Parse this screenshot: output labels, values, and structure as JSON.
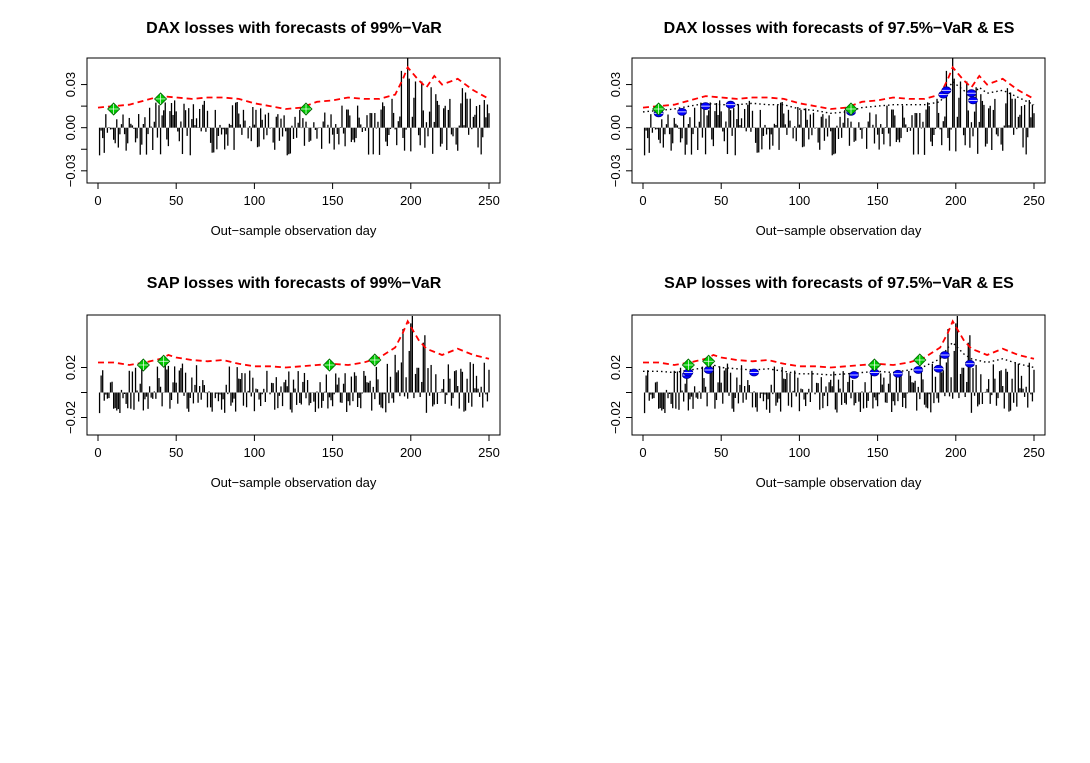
{
  "chart_data": [
    {
      "type": "bar",
      "title": "DAX losses with forecasts of 99%−VaR",
      "xlabel": "Out−sample observation day",
      "ylabel": "",
      "xlim": [
        0,
        250
      ],
      "ylim": [
        -0.035,
        0.045
      ],
      "xticks": [
        0,
        50,
        100,
        150,
        200,
        250
      ],
      "xtick_labels": [
        "0",
        "50",
        "100",
        "150",
        "200",
        "250"
      ],
      "yticks": [
        -0.03,
        0.0,
        0.03
      ],
      "ytick_labels": [
        "−0.03",
        "0.00",
        "0.03"
      ],
      "series": [
        {
          "kind": "var_line",
          "color": "#ff0000",
          "x": [
            0,
            10,
            20,
            30,
            40,
            50,
            60,
            70,
            80,
            90,
            100,
            110,
            120,
            130,
            140,
            150,
            160,
            170,
            180,
            190,
            195,
            198,
            205,
            210,
            215,
            220,
            230,
            240,
            250
          ],
          "y": [
            0.014,
            0.015,
            0.016,
            0.019,
            0.022,
            0.021,
            0.02,
            0.021,
            0.021,
            0.02,
            0.017,
            0.015,
            0.013,
            0.014,
            0.018,
            0.019,
            0.021,
            0.02,
            0.02,
            0.023,
            0.034,
            0.042,
            0.033,
            0.028,
            0.036,
            0.03,
            0.034,
            0.026,
            0.02
          ]
        },
        {
          "kind": "exceedance",
          "color": "#00c800",
          "marker": "diamond",
          "x": [
            10,
            40,
            133
          ],
          "y": [
            0.013,
            0.02,
            0.013
          ]
        }
      ]
    },
    {
      "type": "bar",
      "title": "DAX losses with forecasts of 97.5%−VaR & ES",
      "xlabel": "Out−sample observation day",
      "ylabel": "",
      "xlim": [
        0,
        250
      ],
      "ylim": [
        -0.035,
        0.045
      ],
      "xticks": [
        0,
        50,
        100,
        150,
        200,
        250
      ],
      "xtick_labels": [
        "0",
        "50",
        "100",
        "150",
        "200",
        "250"
      ],
      "yticks": [
        -0.03,
        0.0,
        0.03
      ],
      "ytick_labels": [
        "−0.03",
        "0.00",
        "0.03"
      ],
      "series": [
        {
          "kind": "es_line",
          "color": "#ff0000",
          "x": [
            0,
            10,
            20,
            30,
            40,
            50,
            60,
            70,
            80,
            90,
            100,
            110,
            120,
            130,
            140,
            150,
            160,
            170,
            180,
            190,
            195,
            198,
            205,
            210,
            215,
            220,
            230,
            240,
            250
          ],
          "y": [
            0.014,
            0.015,
            0.016,
            0.019,
            0.022,
            0.021,
            0.02,
            0.021,
            0.021,
            0.02,
            0.017,
            0.015,
            0.013,
            0.014,
            0.018,
            0.019,
            0.021,
            0.02,
            0.02,
            0.023,
            0.034,
            0.042,
            0.033,
            0.028,
            0.036,
            0.03,
            0.034,
            0.026,
            0.02
          ]
        },
        {
          "kind": "var_line",
          "color": "#000000",
          "x": [
            0,
            10,
            20,
            30,
            40,
            50,
            60,
            70,
            80,
            90,
            100,
            110,
            120,
            130,
            140,
            150,
            160,
            170,
            180,
            190,
            195,
            198,
            205,
            210,
            215,
            220,
            230,
            240,
            250
          ],
          "y": [
            0.011,
            0.012,
            0.013,
            0.015,
            0.017,
            0.016,
            0.016,
            0.017,
            0.016,
            0.016,
            0.013,
            0.012,
            0.01,
            0.011,
            0.014,
            0.015,
            0.016,
            0.016,
            0.016,
            0.018,
            0.027,
            0.032,
            0.026,
            0.022,
            0.028,
            0.024,
            0.026,
            0.021,
            0.016
          ]
        },
        {
          "kind": "var_exceedance",
          "color": "#0000ff",
          "marker": "circle",
          "x": [
            10,
            25,
            40,
            56,
            133,
            192,
            194,
            210,
            211
          ],
          "y": [
            0.01,
            0.011,
            0.015,
            0.016,
            0.011,
            0.023,
            0.026,
            0.024,
            0.019
          ]
        },
        {
          "kind": "es_exceedance",
          "color": "#00c800",
          "marker": "diamond",
          "x": [
            10,
            133
          ],
          "y": [
            0.013,
            0.013
          ]
        }
      ]
    },
    {
      "type": "bar",
      "title": "SAP losses with forecasts of 99%−VaR",
      "xlabel": "Out−sample observation day",
      "ylabel": "",
      "xlim": [
        0,
        250
      ],
      "ylim": [
        -0.03,
        0.058
      ],
      "xticks": [
        0,
        50,
        100,
        150,
        200,
        250
      ],
      "xtick_labels": [
        "0",
        "50",
        "100",
        "150",
        "200",
        "250"
      ],
      "yticks": [
        -0.02,
        0.02
      ],
      "ytick_labels": [
        "−0.02",
        "0.02"
      ],
      "series": [
        {
          "kind": "var_line",
          "color": "#ff0000",
          "x": [
            0,
            10,
            20,
            30,
            40,
            45,
            50,
            60,
            70,
            80,
            90,
            100,
            110,
            120,
            130,
            140,
            150,
            160,
            170,
            180,
            190,
            195,
            198,
            205,
            210,
            220,
            230,
            240,
            250
          ],
          "y": [
            0.024,
            0.024,
            0.022,
            0.024,
            0.027,
            0.03,
            0.028,
            0.026,
            0.025,
            0.026,
            0.023,
            0.021,
            0.021,
            0.02,
            0.021,
            0.022,
            0.023,
            0.022,
            0.024,
            0.028,
            0.036,
            0.048,
            0.057,
            0.042,
            0.035,
            0.03,
            0.035,
            0.03,
            0.027
          ]
        },
        {
          "kind": "exceedance",
          "color": "#00c800",
          "marker": "diamond",
          "x": [
            29,
            42,
            148,
            177
          ],
          "y": [
            0.022,
            0.025,
            0.022,
            0.026
          ]
        }
      ]
    },
    {
      "type": "bar",
      "title": "SAP losses with forecasts of 97.5%−VaR & ES",
      "xlabel": "Out−sample observation day",
      "ylabel": "",
      "xlim": [
        0,
        250
      ],
      "ylim": [
        -0.03,
        0.058
      ],
      "xticks": [
        0,
        50,
        100,
        150,
        200,
        250
      ],
      "xtick_labels": [
        "0",
        "50",
        "100",
        "150",
        "200",
        "250"
      ],
      "yticks": [
        -0.02,
        0.02
      ],
      "ytick_labels": [
        "−0.02",
        "0.02"
      ],
      "series": [
        {
          "kind": "es_line",
          "color": "#ff0000",
          "x": [
            0,
            10,
            20,
            30,
            40,
            45,
            50,
            60,
            70,
            80,
            90,
            100,
            110,
            120,
            130,
            140,
            150,
            160,
            170,
            180,
            190,
            195,
            198,
            205,
            210,
            220,
            230,
            240,
            250
          ],
          "y": [
            0.024,
            0.024,
            0.022,
            0.024,
            0.027,
            0.03,
            0.028,
            0.026,
            0.025,
            0.026,
            0.023,
            0.021,
            0.021,
            0.02,
            0.021,
            0.022,
            0.023,
            0.022,
            0.024,
            0.028,
            0.036,
            0.048,
            0.057,
            0.042,
            0.035,
            0.03,
            0.035,
            0.03,
            0.027
          ]
        },
        {
          "kind": "var_line",
          "color": "#000000",
          "x": [
            0,
            10,
            20,
            30,
            40,
            45,
            50,
            60,
            70,
            80,
            90,
            100,
            110,
            120,
            130,
            140,
            150,
            160,
            170,
            180,
            190,
            195,
            198,
            205,
            210,
            220,
            230,
            240,
            250
          ],
          "y": [
            0.017,
            0.017,
            0.016,
            0.018,
            0.02,
            0.022,
            0.02,
            0.019,
            0.018,
            0.019,
            0.017,
            0.015,
            0.015,
            0.014,
            0.015,
            0.016,
            0.017,
            0.016,
            0.018,
            0.021,
            0.027,
            0.036,
            0.04,
            0.031,
            0.027,
            0.024,
            0.027,
            0.023,
            0.02
          ]
        },
        {
          "kind": "var_exceedance",
          "color": "#0000ff",
          "marker": "circle",
          "x": [
            28,
            29,
            42,
            71,
            135,
            148,
            163,
            176,
            189,
            193,
            209
          ],
          "y": [
            0.014,
            0.016,
            0.018,
            0.016,
            0.014,
            0.016,
            0.015,
            0.018,
            0.019,
            0.03,
            0.023
          ]
        },
        {
          "kind": "es_exceedance",
          "color": "#00c800",
          "marker": "diamond",
          "x": [
            29,
            42,
            148,
            177
          ],
          "y": [
            0.022,
            0.025,
            0.022,
            0.026
          ]
        }
      ]
    }
  ]
}
